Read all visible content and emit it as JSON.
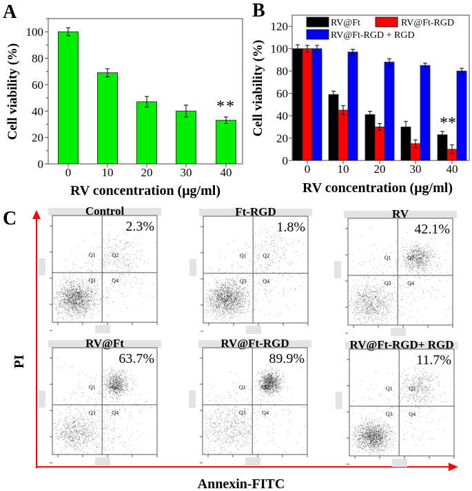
{
  "panel_labels": {
    "a": "A",
    "b": "B",
    "c": "C"
  },
  "chart_data": [
    {
      "type": "bar",
      "panel": "A",
      "categories": [
        "0",
        "10",
        "20",
        "30",
        "40"
      ],
      "values": [
        100,
        69,
        47,
        40,
        33
      ],
      "errors": [
        3,
        3,
        4,
        4.5,
        2.5
      ],
      "xlabel": "RV concentration (μg/ml)",
      "ylabel": "Cell viability (%)",
      "ylim": [
        0,
        110
      ],
      "yticks": [
        "0",
        "20",
        "40",
        "60",
        "80",
        "100"
      ],
      "bar_color": "#00ee00",
      "annotation": "**",
      "annotation_category": "40",
      "grid": false
    },
    {
      "type": "bar",
      "panel": "B",
      "categories": [
        "0",
        "10",
        "20",
        "30",
        "40"
      ],
      "series": [
        {
          "name": "RV@Ft",
          "values": [
            100,
            59,
            41,
            30,
            23
          ],
          "errors": [
            3.5,
            3,
            3,
            5,
            3
          ],
          "color": "#000000"
        },
        {
          "name": "RV@Ft-RGD",
          "values": [
            100,
            45,
            30,
            15,
            10
          ],
          "errors": [
            3,
            4,
            3,
            3.5,
            4
          ],
          "color": "#ff0000"
        },
        {
          "name": "RV@Ft-RGD + RGD",
          "values": [
            100,
            97,
            88,
            85,
            80
          ],
          "errors": [
            3,
            2.5,
            3,
            2,
            2.5
          ],
          "color": "#0000ff"
        }
      ],
      "xlabel": "RV concentration (μg/ml)",
      "ylabel": "Cell viability (%)",
      "ylim": [
        0,
        130
      ],
      "yticks": [
        "0",
        "20",
        "40",
        "60",
        "80",
        "100",
        "120"
      ],
      "legend_position": "top",
      "annotation": "**",
      "annotation_category": "40",
      "grid": false
    }
  ],
  "flow": {
    "x_axis_label": "Annexin-FITC",
    "y_axis_label": "PI",
    "axis_color": "#ff0000",
    "quadrants": [
      "Q1",
      "Q2",
      "Q3",
      "Q4"
    ],
    "panels": [
      {
        "title": "Control",
        "percent": "2.3%"
      },
      {
        "title": "Ft-RGD",
        "percent": "1.8%"
      },
      {
        "title": "RV",
        "percent": "42.1%"
      },
      {
        "title": "RV@Ft",
        "percent": "63.7%"
      },
      {
        "title": "RV@Ft-RGD",
        "percent": "89.9%"
      },
      {
        "title": "RV@Ft-RGD+ RGD",
        "percent": "11.7%"
      }
    ]
  }
}
